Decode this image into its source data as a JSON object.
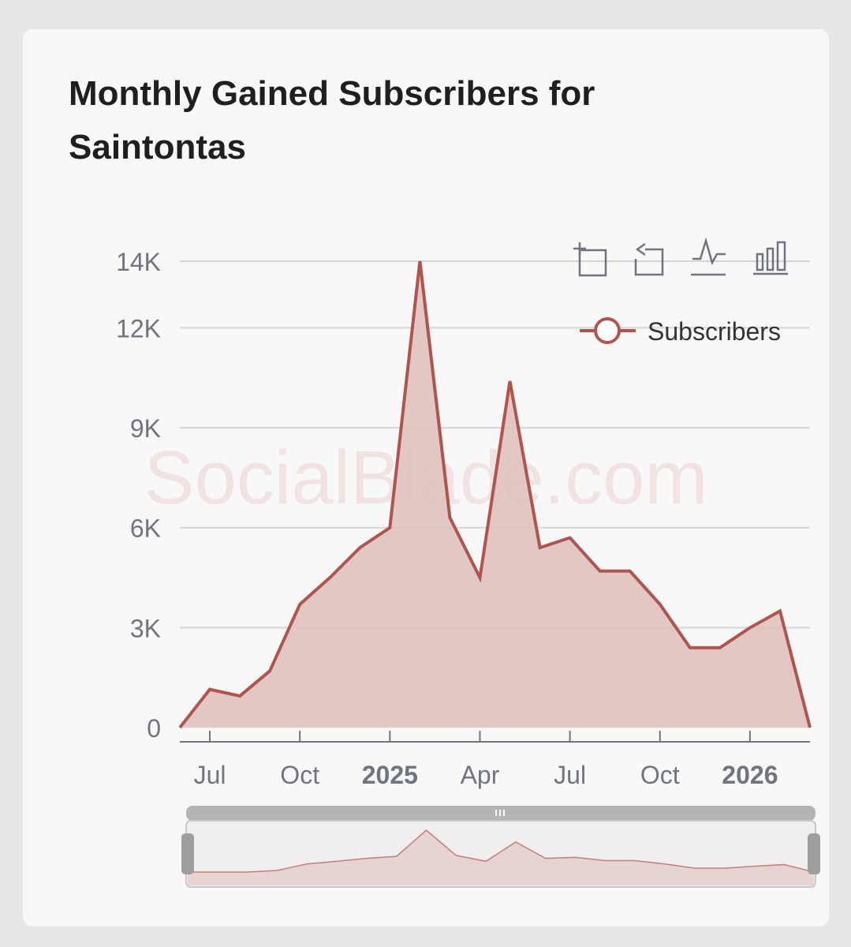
{
  "card": {
    "title": "Monthly Gained Subscribers for Saintontas"
  },
  "watermark": "SocialBlade.com",
  "toolbar": {
    "icons": [
      "zoom-icon",
      "zoom-reset-icon",
      "line-chart-icon",
      "bar-chart-icon"
    ]
  },
  "colors": {
    "series": "#b0554e",
    "area_fill": "#dfc1bf",
    "grid": "#d6d6d6",
    "axis_text": "#6f7480",
    "watermark": "#f1e3e1",
    "slider_handle": "#b4b4b4"
  },
  "chart_data": {
    "type": "area",
    "x": [
      "2024-06",
      "2024-07",
      "2024-08",
      "2024-09",
      "2024-10",
      "2024-11",
      "2024-12",
      "2025-01",
      "2025-02",
      "2025-03",
      "2025-04",
      "2025-05",
      "2025-06",
      "2025-07",
      "2025-08",
      "2025-09",
      "2025-10",
      "2025-11",
      "2025-12",
      "2026-01",
      "2026-02",
      "2026-03"
    ],
    "series": [
      {
        "name": "Subscribers",
        "values": [
          0,
          1150,
          950,
          1700,
          3700,
          4500,
          5400,
          6000,
          14000,
          6300,
          4500,
          10400,
          5400,
          5700,
          4700,
          4700,
          3700,
          2400,
          2400,
          3000,
          3500,
          0
        ]
      }
    ],
    "y_ticks": [
      "0",
      "3K",
      "6K",
      "9K",
      "12K",
      "14K"
    ],
    "y_tick_values": [
      0,
      3000,
      6000,
      9000,
      12000,
      14000
    ],
    "x_ticks": [
      {
        "label": "Jul",
        "month": 1,
        "bold": false
      },
      {
        "label": "Oct",
        "month": 4,
        "bold": false
      },
      {
        "label": "2025",
        "month": 7,
        "bold": true
      },
      {
        "label": "Apr",
        "month": 10,
        "bold": false
      },
      {
        "label": "Jul",
        "month": 13,
        "bold": false
      },
      {
        "label": "Oct",
        "month": 16,
        "bold": false
      },
      {
        "label": "2026",
        "month": 19,
        "bold": true
      }
    ],
    "ylim": [
      0,
      14000
    ],
    "grid": true,
    "legend_position": "top-right",
    "data_zoom": true
  }
}
